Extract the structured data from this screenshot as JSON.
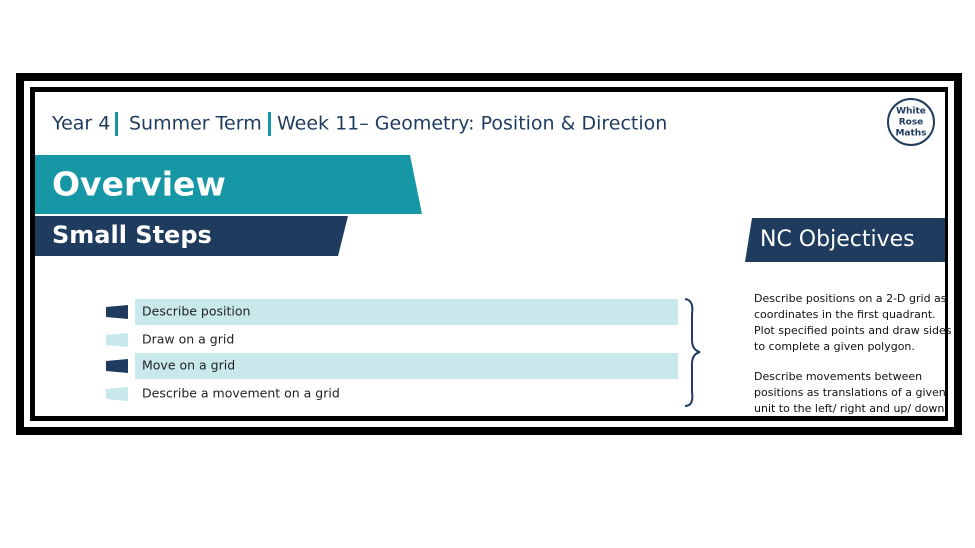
{
  "header": {
    "year": "Year 4",
    "term": "Summer Term",
    "week": "Week 11– Geometry: Position & Direction"
  },
  "logo": [
    "White",
    "Rose",
    "Maths"
  ],
  "banner": {
    "title": "Overview",
    "subtitle": "Small Steps"
  },
  "steps": [
    "Describe position",
    "Draw on a grid",
    "Move on a grid",
    "Describe a movement on a grid"
  ],
  "objectives": {
    "title": "NC Objectives",
    "paragraphs": [
      [
        "Describe positions on a 2-D grid as",
        "coordinates in the first quadrant.",
        "Plot specified points and draw sides",
        "to complete a given polygon."
      ],
      [
        "Describe movements between",
        "positions as translations of a given",
        "unit to the left/ right and up/ down."
      ]
    ]
  }
}
